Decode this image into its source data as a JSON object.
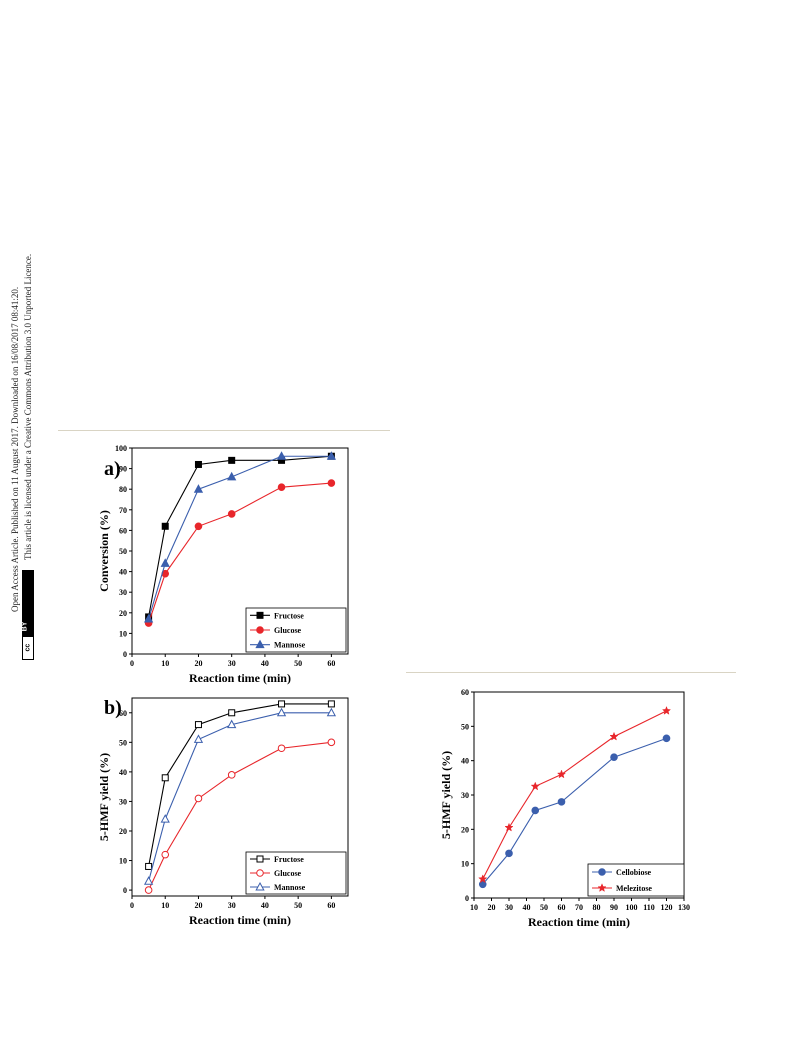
{
  "side_notes": {
    "line1": "Open Access Article. Published on 11 August 2017. Downloaded on 16/08/2017 08:41:20.",
    "line2": "This article is licensed under a Creative Commons Attribution 3.0 Unported Licence.",
    "badge_cc": "cc",
    "badge_by": "BY"
  },
  "chart_data": [
    {
      "id": "a",
      "panel_label": "a)",
      "type": "line",
      "xlabel": "Reaction time (min)",
      "ylabel": "Conversion (%)",
      "xlim": [
        0,
        65
      ],
      "ylim": [
        0,
        100
      ],
      "xticks": [
        0,
        10,
        20,
        30,
        40,
        50,
        60
      ],
      "yticks": [
        0,
        10,
        20,
        30,
        40,
        50,
        60,
        70,
        80,
        90,
        100
      ],
      "legend_position": "bottom-right",
      "series": [
        {
          "name": "Fructose",
          "color": "#000000",
          "marker": "square-filled",
          "x": [
            5,
            10,
            20,
            30,
            45,
            60
          ],
          "y": [
            18,
            62,
            92,
            94,
            94,
            96
          ]
        },
        {
          "name": "Glucose",
          "color": "#e8262b",
          "marker": "circle-filled",
          "x": [
            5,
            10,
            20,
            30,
            45,
            60
          ],
          "y": [
            15,
            39,
            62,
            68,
            81,
            83
          ]
        },
        {
          "name": "Mannose",
          "color": "#3b5fad",
          "marker": "triangle-filled",
          "x": [
            5,
            10,
            20,
            30,
            45,
            60
          ],
          "y": [
            17,
            44,
            80,
            86,
            96,
            96
          ]
        }
      ]
    },
    {
      "id": "b",
      "panel_label": "b)",
      "type": "line",
      "xlabel": "Reaction time (min)",
      "ylabel": "5-HMF yield (%)",
      "xlim": [
        0,
        65
      ],
      "ylim": [
        -2,
        65
      ],
      "xticks": [
        0,
        10,
        20,
        30,
        40,
        50,
        60
      ],
      "yticks": [
        0,
        10,
        20,
        30,
        40,
        50,
        60
      ],
      "legend_position": "bottom-right",
      "series": [
        {
          "name": "Fructose",
          "color": "#000000",
          "marker": "square-open",
          "x": [
            5,
            10,
            20,
            30,
            45,
            60
          ],
          "y": [
            8,
            38,
            56,
            60,
            63,
            63
          ]
        },
        {
          "name": "Glucose",
          "color": "#e8262b",
          "marker": "circle-open",
          "x": [
            5,
            10,
            20,
            30,
            45,
            60
          ],
          "y": [
            0,
            12,
            31,
            39,
            48,
            50
          ]
        },
        {
          "name": "Mannose",
          "color": "#3b5fad",
          "marker": "triangle-open",
          "x": [
            5,
            10,
            20,
            30,
            45,
            60
          ],
          "y": [
            3,
            24,
            51,
            56,
            60,
            60
          ]
        }
      ]
    },
    {
      "id": "c",
      "panel_label": "",
      "type": "line",
      "xlabel": "Reaction time (min)",
      "ylabel": "5-HMF yield (%)",
      "xlim": [
        10,
        130
      ],
      "ylim": [
        0,
        60
      ],
      "xticks": [
        10,
        20,
        30,
        40,
        50,
        60,
        70,
        80,
        90,
        100,
        110,
        120,
        130
      ],
      "yticks": [
        0,
        10,
        20,
        30,
        40,
        50,
        60
      ],
      "legend_position": "bottom-right",
      "series": [
        {
          "name": "Cellobiose",
          "color": "#3b5fad",
          "marker": "circle-filled",
          "x": [
            15,
            30,
            45,
            60,
            90,
            120
          ],
          "y": [
            4,
            13,
            25.5,
            28,
            41,
            46.5
          ]
        },
        {
          "name": "Melezitose",
          "color": "#e8262b",
          "marker": "star",
          "x": [
            15,
            30,
            45,
            60,
            90,
            120
          ],
          "y": [
            5.5,
            20.5,
            32.5,
            36,
            47,
            54.5
          ]
        }
      ]
    }
  ]
}
